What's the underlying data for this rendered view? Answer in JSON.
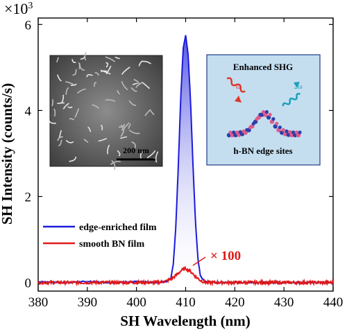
{
  "chart_data": {
    "type": "line",
    "xlabel": "SH Wavelength (nm)",
    "ylabel": "SH Intensity (counts/s)",
    "y_multiplier_label": "×10",
    "y_multiplier_exp": "3",
    "xlim": [
      380,
      440
    ],
    "ylim": [
      -0.2,
      6.15
    ],
    "xticks": [
      380,
      390,
      400,
      410,
      420,
      430,
      440
    ],
    "yticks": [
      0,
      2,
      4,
      6
    ],
    "grid": false,
    "legend_position": "bottom-left",
    "series": [
      {
        "name": "edge-enriched film",
        "color": "#1a1adb",
        "fill": true,
        "x": [
          380,
          385,
          390,
          395,
          400,
          404,
          406,
          407,
          407.5,
          408,
          408.5,
          409,
          409.5,
          410,
          410.5,
          411,
          411.5,
          412,
          412.5,
          413,
          414,
          416,
          420,
          425,
          430,
          435,
          440
        ],
        "y": [
          0.02,
          0.0,
          0.02,
          0.0,
          0.02,
          0.0,
          0.02,
          0.1,
          0.45,
          1.3,
          2.7,
          4.3,
          5.45,
          5.75,
          5.3,
          4.2,
          2.7,
          1.4,
          0.55,
          0.15,
          0.02,
          0.0,
          0.0,
          0.0,
          0.0,
          0.0,
          0.0
        ]
      },
      {
        "name": "smooth BN film",
        "color": "#e01a1a",
        "fill": false,
        "x": [
          380,
          404,
          406,
          407,
          408,
          409,
          410,
          411,
          412,
          413,
          414,
          440
        ],
        "y": [
          0.0,
          0.0,
          0.03,
          0.08,
          0.16,
          0.27,
          0.33,
          0.26,
          0.14,
          0.05,
          0.0,
          0.0
        ]
      }
    ],
    "annotation": "× 100"
  },
  "inset_sem": {
    "scale_label": "200 nm"
  },
  "inset_schematic": {
    "title": "Enhanced SHG",
    "omega_label": "ω",
    "two_omega_label": "2ω",
    "caption": "h-BN edge sites"
  }
}
